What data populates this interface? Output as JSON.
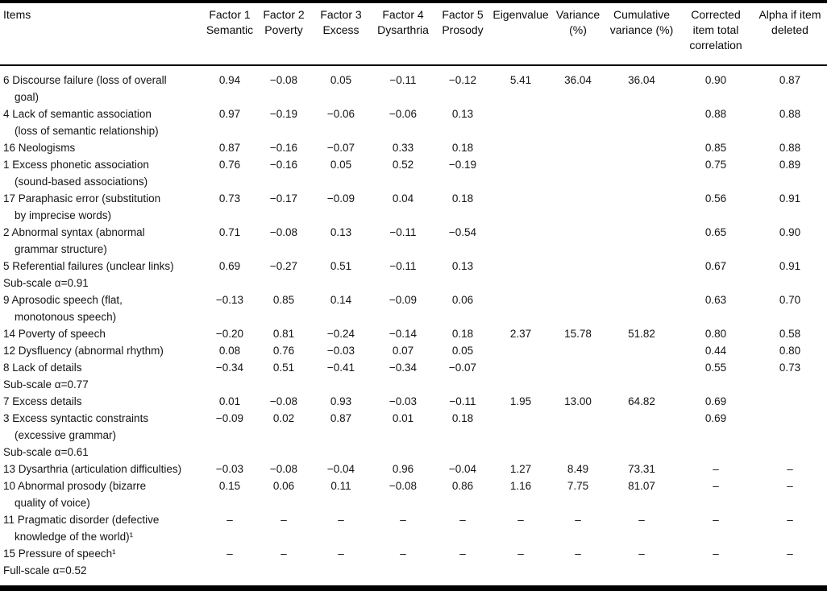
{
  "table": {
    "header": [
      "Items",
      "Factor 1\nSemantic",
      "Factor 2\nPoverty",
      "Factor 3\nExcess",
      "Factor 4\nDysarthria",
      "Factor 5\nProsody",
      "Eigenvalue",
      "Variance\n(%)",
      "Cumulative\nvariance (%)",
      "Corrected\nitem total\ncorrelation",
      "Alpha if item\ndeleted"
    ],
    "rows": [
      {
        "item": "6 Discourse failure (loss of overall\ngoal)",
        "values": [
          "0.94",
          "−0.08",
          "0.05",
          "−0.11",
          "−0.12",
          "5.41",
          "36.04",
          "36.04",
          "0.90",
          "0.87"
        ]
      },
      {
        "item": "4 Lack of semantic association\n(loss of semantic relationship)",
        "values": [
          "0.97",
          "−0.19",
          "−0.06",
          "−0.06",
          "0.13",
          "",
          "",
          "",
          "0.88",
          "0.88"
        ]
      },
      {
        "item": "16 Neologisms",
        "values": [
          "0.87",
          "−0.16",
          "−0.07",
          "0.33",
          "0.18",
          "",
          "",
          "",
          "0.85",
          "0.88"
        ]
      },
      {
        "item": "1 Excess phonetic association\n(sound-based associations)",
        "values": [
          "0.76",
          "−0.16",
          "0.05",
          "0.52",
          "−0.19",
          "",
          "",
          "",
          "0.75",
          "0.89"
        ]
      },
      {
        "item": "17 Paraphasic error (substitution\nby imprecise words)",
        "values": [
          "0.73",
          "−0.17",
          "−0.09",
          "0.04",
          "0.18",
          "",
          "",
          "",
          "0.56",
          "0.91"
        ]
      },
      {
        "item": "2 Abnormal syntax (abnormal\ngrammar structure)",
        "values": [
          "0.71",
          "−0.08",
          "0.13",
          "−0.11",
          "−0.54",
          "",
          "",
          "",
          "0.65",
          "0.90"
        ]
      },
      {
        "item": "5 Referential failures (unclear links)",
        "values": [
          "0.69",
          "−0.27",
          "0.51",
          "−0.11",
          "0.13",
          "",
          "",
          "",
          "0.67",
          "0.91"
        ]
      },
      {
        "item": "Sub-scale α=0.91",
        "values": [
          "",
          "",
          "",
          "",
          "",
          "",
          "",
          "",
          "",
          ""
        ]
      },
      {
        "item": "9 Aprosodic speech (flat,\nmonotonous speech)",
        "values": [
          "−0.13",
          "0.85",
          "0.14",
          "−0.09",
          "0.06",
          "",
          "",
          "",
          "0.63",
          "0.70"
        ]
      },
      {
        "item": "14 Poverty of speech",
        "values": [
          "−0.20",
          "0.81",
          "−0.24",
          "−0.14",
          "0.18",
          "2.37",
          "15.78",
          "51.82",
          "0.80",
          "0.58"
        ]
      },
      {
        "item": "12 Dysfluency (abnormal rhythm)",
        "values": [
          "0.08",
          "0.76",
          "−0.03",
          "0.07",
          "0.05",
          "",
          "",
          "",
          "0.44",
          "0.80"
        ]
      },
      {
        "item": "8 Lack of details",
        "values": [
          "−0.34",
          "0.51",
          "−0.41",
          "−0.34",
          "−0.07",
          "",
          "",
          "",
          "0.55",
          "0.73"
        ]
      },
      {
        "item": "Sub-scale α=0.77",
        "values": [
          "",
          "",
          "",
          "",
          "",
          "",
          "",
          "",
          "",
          ""
        ]
      },
      {
        "item": "7 Excess details",
        "values": [
          "0.01",
          "−0.08",
          "0.93",
          "−0.03",
          "−0.11",
          "1.95",
          "13.00",
          "64.82",
          "0.69",
          ""
        ]
      },
      {
        "item": "3 Excess syntactic constraints\n(excessive grammar)",
        "values": [
          "−0.09",
          "0.02",
          "0.87",
          "0.01",
          "0.18",
          "",
          "",
          "",
          "0.69",
          ""
        ]
      },
      {
        "item": "Sub-scale α=0.61",
        "values": [
          "",
          "",
          "",
          "",
          "",
          "",
          "",
          "",
          "",
          ""
        ]
      },
      {
        "item": "13 Dysarthria (articulation difficulties)",
        "values": [
          "−0.03",
          "−0.08",
          "−0.04",
          "0.96",
          "−0.04",
          "1.27",
          "8.49",
          "73.31",
          "–",
          "–"
        ]
      },
      {
        "item": "10 Abnormal prosody (bizarre\nquality of voice)",
        "values": [
          "0.15",
          "0.06",
          "0.11",
          "−0.08",
          "0.86",
          "1.16",
          "7.75",
          "81.07",
          "–",
          "–"
        ]
      },
      {
        "item": "11 Pragmatic disorder (defective\nknowledge of the world)¹",
        "values": [
          "–",
          "–",
          "–",
          "–",
          "–",
          "–",
          "–",
          "–",
          "–",
          "–"
        ]
      },
      {
        "item": "15 Pressure of speech¹",
        "values": [
          "–",
          "–",
          "–",
          "–",
          "–",
          "–",
          "–",
          "–",
          "–",
          "–"
        ]
      },
      {
        "item": "Full-scale α=0.52",
        "values": [
          "",
          "",
          "",
          "",
          "",
          "",
          "",
          "",
          "",
          ""
        ]
      }
    ]
  }
}
